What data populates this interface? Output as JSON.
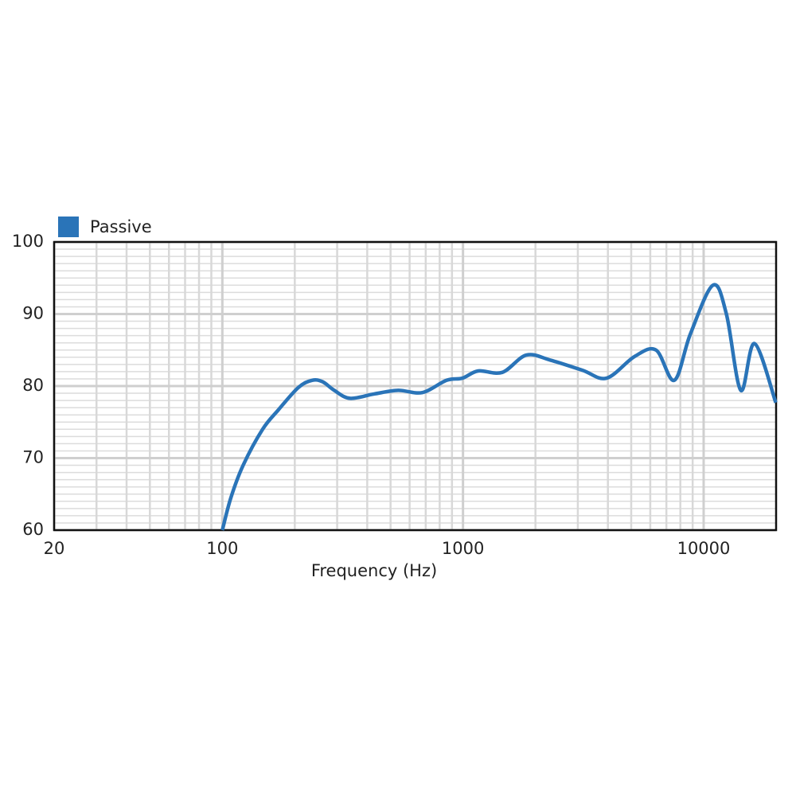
{
  "chart_data": {
    "type": "line",
    "x_label": "Frequency (Hz)",
    "x": [
      100,
      108.5,
      122,
      147,
      171,
      207,
      236,
      261,
      292,
      339,
      427,
      538,
      678,
      854,
      995,
      1157,
      1456,
      1833,
      2308,
      3134,
      3950,
      5160,
      6340,
      7550,
      8800,
      10930,
      12430,
      14270,
      16270,
      19940
    ],
    "series": [
      {
        "name": "Passive",
        "color": "#2a74b8",
        "values": [
          60,
          64.5,
          69,
          74,
          76.7,
          79.8,
          80.8,
          80.6,
          79.4,
          78.3,
          78.9,
          79.4,
          79.1,
          80.8,
          81.1,
          82.1,
          81.9,
          84.3,
          83.6,
          82.2,
          81.1,
          84.1,
          85.0,
          80.8,
          87.2,
          94.0,
          90.0,
          79.4,
          85.9,
          77.7
        ]
      }
    ],
    "xlim": [
      20,
      20000
    ],
    "xticks": [
      20,
      100,
      1000,
      10000
    ],
    "xscale": "log",
    "ylim": [
      60,
      100
    ],
    "yticks": [
      60,
      70,
      80,
      90,
      100
    ],
    "grid": true,
    "minor_grid": true,
    "legend": "top-left"
  }
}
